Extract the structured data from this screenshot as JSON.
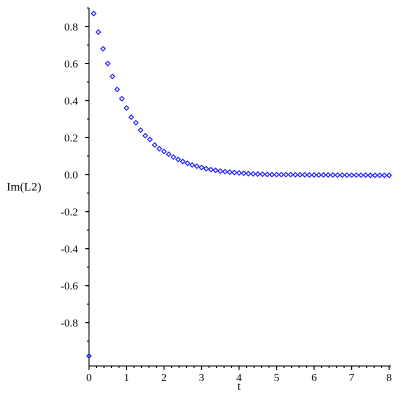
{
  "chart_data": {
    "type": "scatter",
    "xlabel": "t",
    "ylabel": "Im(L2)",
    "xlim": [
      0,
      8.05
    ],
    "ylim": [
      -0.98,
      0.9
    ],
    "xticks": [
      0,
      1,
      2,
      3,
      4,
      5,
      6,
      7,
      8
    ],
    "yticks": [
      0.8,
      0.6,
      0.4,
      0.2,
      0.0,
      -0.2,
      -0.4,
      -0.6,
      -0.8
    ],
    "ytick_labels": [
      "0.8",
      "0.6",
      "0.4",
      "0.2",
      "0.0",
      "-0.2",
      "-0.4",
      "-0.6",
      "-0.8"
    ],
    "marker_color": "#1a1aff",
    "series": [
      {
        "marker": "diamond",
        "x": [
          0.0,
          0.125,
          0.25,
          0.375,
          0.5,
          0.625,
          0.75,
          0.875,
          1.0,
          1.125,
          1.25,
          1.375,
          1.5,
          1.625,
          1.75,
          1.875,
          2.0,
          2.125,
          2.25,
          2.375,
          2.5,
          2.625,
          2.75,
          2.875,
          3.0,
          3.125,
          3.25,
          3.375,
          3.5,
          3.625,
          3.75,
          3.875,
          4.0,
          4.125,
          4.25,
          4.375,
          4.5,
          4.625,
          4.75,
          4.875,
          5.0,
          5.125,
          5.25,
          5.375,
          5.5,
          5.625,
          5.75,
          5.875,
          6.0,
          6.125,
          6.25,
          6.375,
          6.5,
          6.625,
          6.75,
          6.875,
          7.0,
          7.125,
          7.25,
          7.375,
          7.5,
          7.625,
          7.75,
          7.875,
          8.0
        ],
        "y": [
          -0.98,
          0.87,
          0.77,
          0.68,
          0.6,
          0.53,
          0.46,
          0.41,
          0.36,
          0.31,
          0.28,
          0.24,
          0.21,
          0.19,
          0.16,
          0.14,
          0.125,
          0.11,
          0.095,
          0.082,
          0.071,
          0.061,
          0.052,
          0.045,
          0.038,
          0.032,
          0.027,
          0.023,
          0.019,
          0.016,
          0.013,
          0.011,
          0.009,
          0.007,
          0.005,
          0.004,
          0.003,
          0.002,
          0.001,
          0.0,
          0.0,
          0.0,
          0.0,
          0.0,
          -0.001,
          -0.001,
          -0.001,
          -0.002,
          -0.002,
          -0.002,
          -0.002,
          -0.002,
          -0.002,
          -0.003,
          -0.003,
          -0.003,
          -0.003,
          -0.003,
          -0.003,
          -0.003,
          -0.004,
          -0.004,
          -0.004,
          -0.004,
          -0.004
        ]
      }
    ]
  }
}
